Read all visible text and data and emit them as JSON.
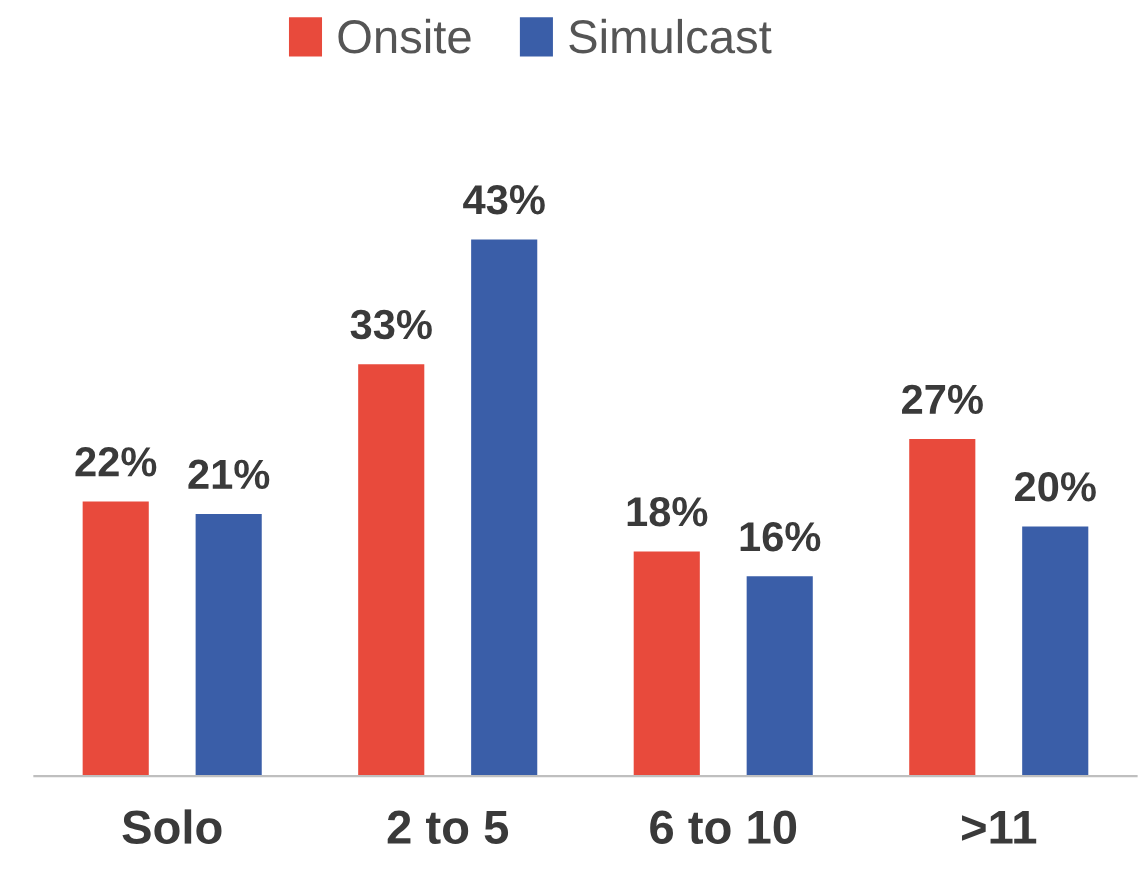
{
  "chart_data": {
    "type": "bar",
    "categories": [
      "Solo",
      "2 to 5",
      "6 to 10",
      ">11"
    ],
    "series": [
      {
        "name": "Onsite",
        "color": "#e84a3c",
        "values": [
          22,
          33,
          18,
          27
        ],
        "value_labels": [
          "22%",
          "33%",
          "18%",
          "27%"
        ]
      },
      {
        "name": "Simulcast",
        "color": "#3a5ea8",
        "values": [
          21,
          43,
          16,
          20
        ],
        "value_labels": [
          "21%",
          "43%",
          "16%",
          "20%"
        ]
      }
    ],
    "legend": "top",
    "grid": false
  }
}
